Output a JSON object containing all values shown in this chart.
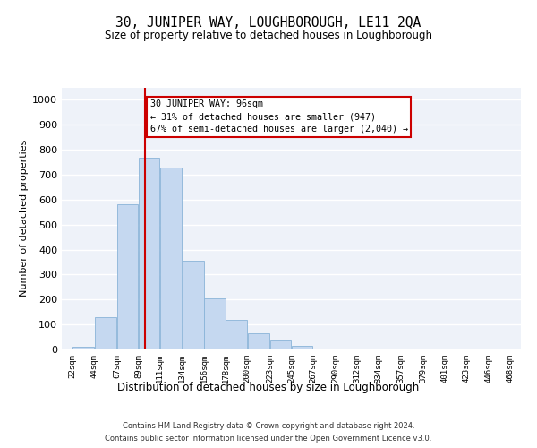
{
  "title": "30, JUNIPER WAY, LOUGHBOROUGH, LE11 2QA",
  "subtitle": "Size of property relative to detached houses in Loughborough",
  "xlabel": "Distribution of detached houses by size in Loughborough",
  "ylabel": "Number of detached properties",
  "bin_labels": [
    "22sqm",
    "44sqm",
    "67sqm",
    "89sqm",
    "111sqm",
    "134sqm",
    "156sqm",
    "178sqm",
    "200sqm",
    "223sqm",
    "245sqm",
    "267sqm",
    "290sqm",
    "312sqm",
    "334sqm",
    "357sqm",
    "379sqm",
    "401sqm",
    "423sqm",
    "446sqm",
    "468sqm"
  ],
  "bar_color": "#c5d8f0",
  "bar_edgecolor": "#8ab4d8",
  "bar_heights": [
    10,
    128,
    580,
    770,
    730,
    355,
    205,
    120,
    65,
    35,
    15,
    5,
    5,
    5,
    5,
    5,
    5,
    5,
    5,
    5
  ],
  "bin_starts": [
    22,
    44,
    67,
    89,
    111,
    134,
    156,
    178,
    200,
    223,
    245,
    267,
    290,
    312,
    334,
    357,
    379,
    401,
    423,
    446
  ],
  "bin_ends": [
    44,
    67,
    89,
    111,
    134,
    156,
    178,
    200,
    223,
    245,
    267,
    290,
    312,
    334,
    357,
    379,
    401,
    423,
    446,
    468
  ],
  "property_line_x": 96,
  "annotation_line1": "30 JUNIPER WAY: 96sqm",
  "annotation_line2": "← 31% of detached houses are smaller (947)",
  "annotation_line3": "67% of semi-detached houses are larger (2,040) →",
  "vline_color": "#cc0000",
  "annotation_box_edgecolor": "#cc0000",
  "footnote1": "Contains HM Land Registry data © Crown copyright and database right 2024.",
  "footnote2": "Contains public sector information licensed under the Open Government Licence v3.0.",
  "ylim": [
    0,
    1050
  ],
  "yticks": [
    0,
    100,
    200,
    300,
    400,
    500,
    600,
    700,
    800,
    900,
    1000
  ],
  "tick_positions": [
    22,
    44,
    67,
    89,
    111,
    134,
    156,
    178,
    200,
    223,
    245,
    267,
    290,
    312,
    334,
    357,
    379,
    401,
    423,
    446,
    468
  ],
  "background_color": "#eef2f9",
  "grid_color": "#ffffff",
  "fig_facecolor": "#ffffff"
}
